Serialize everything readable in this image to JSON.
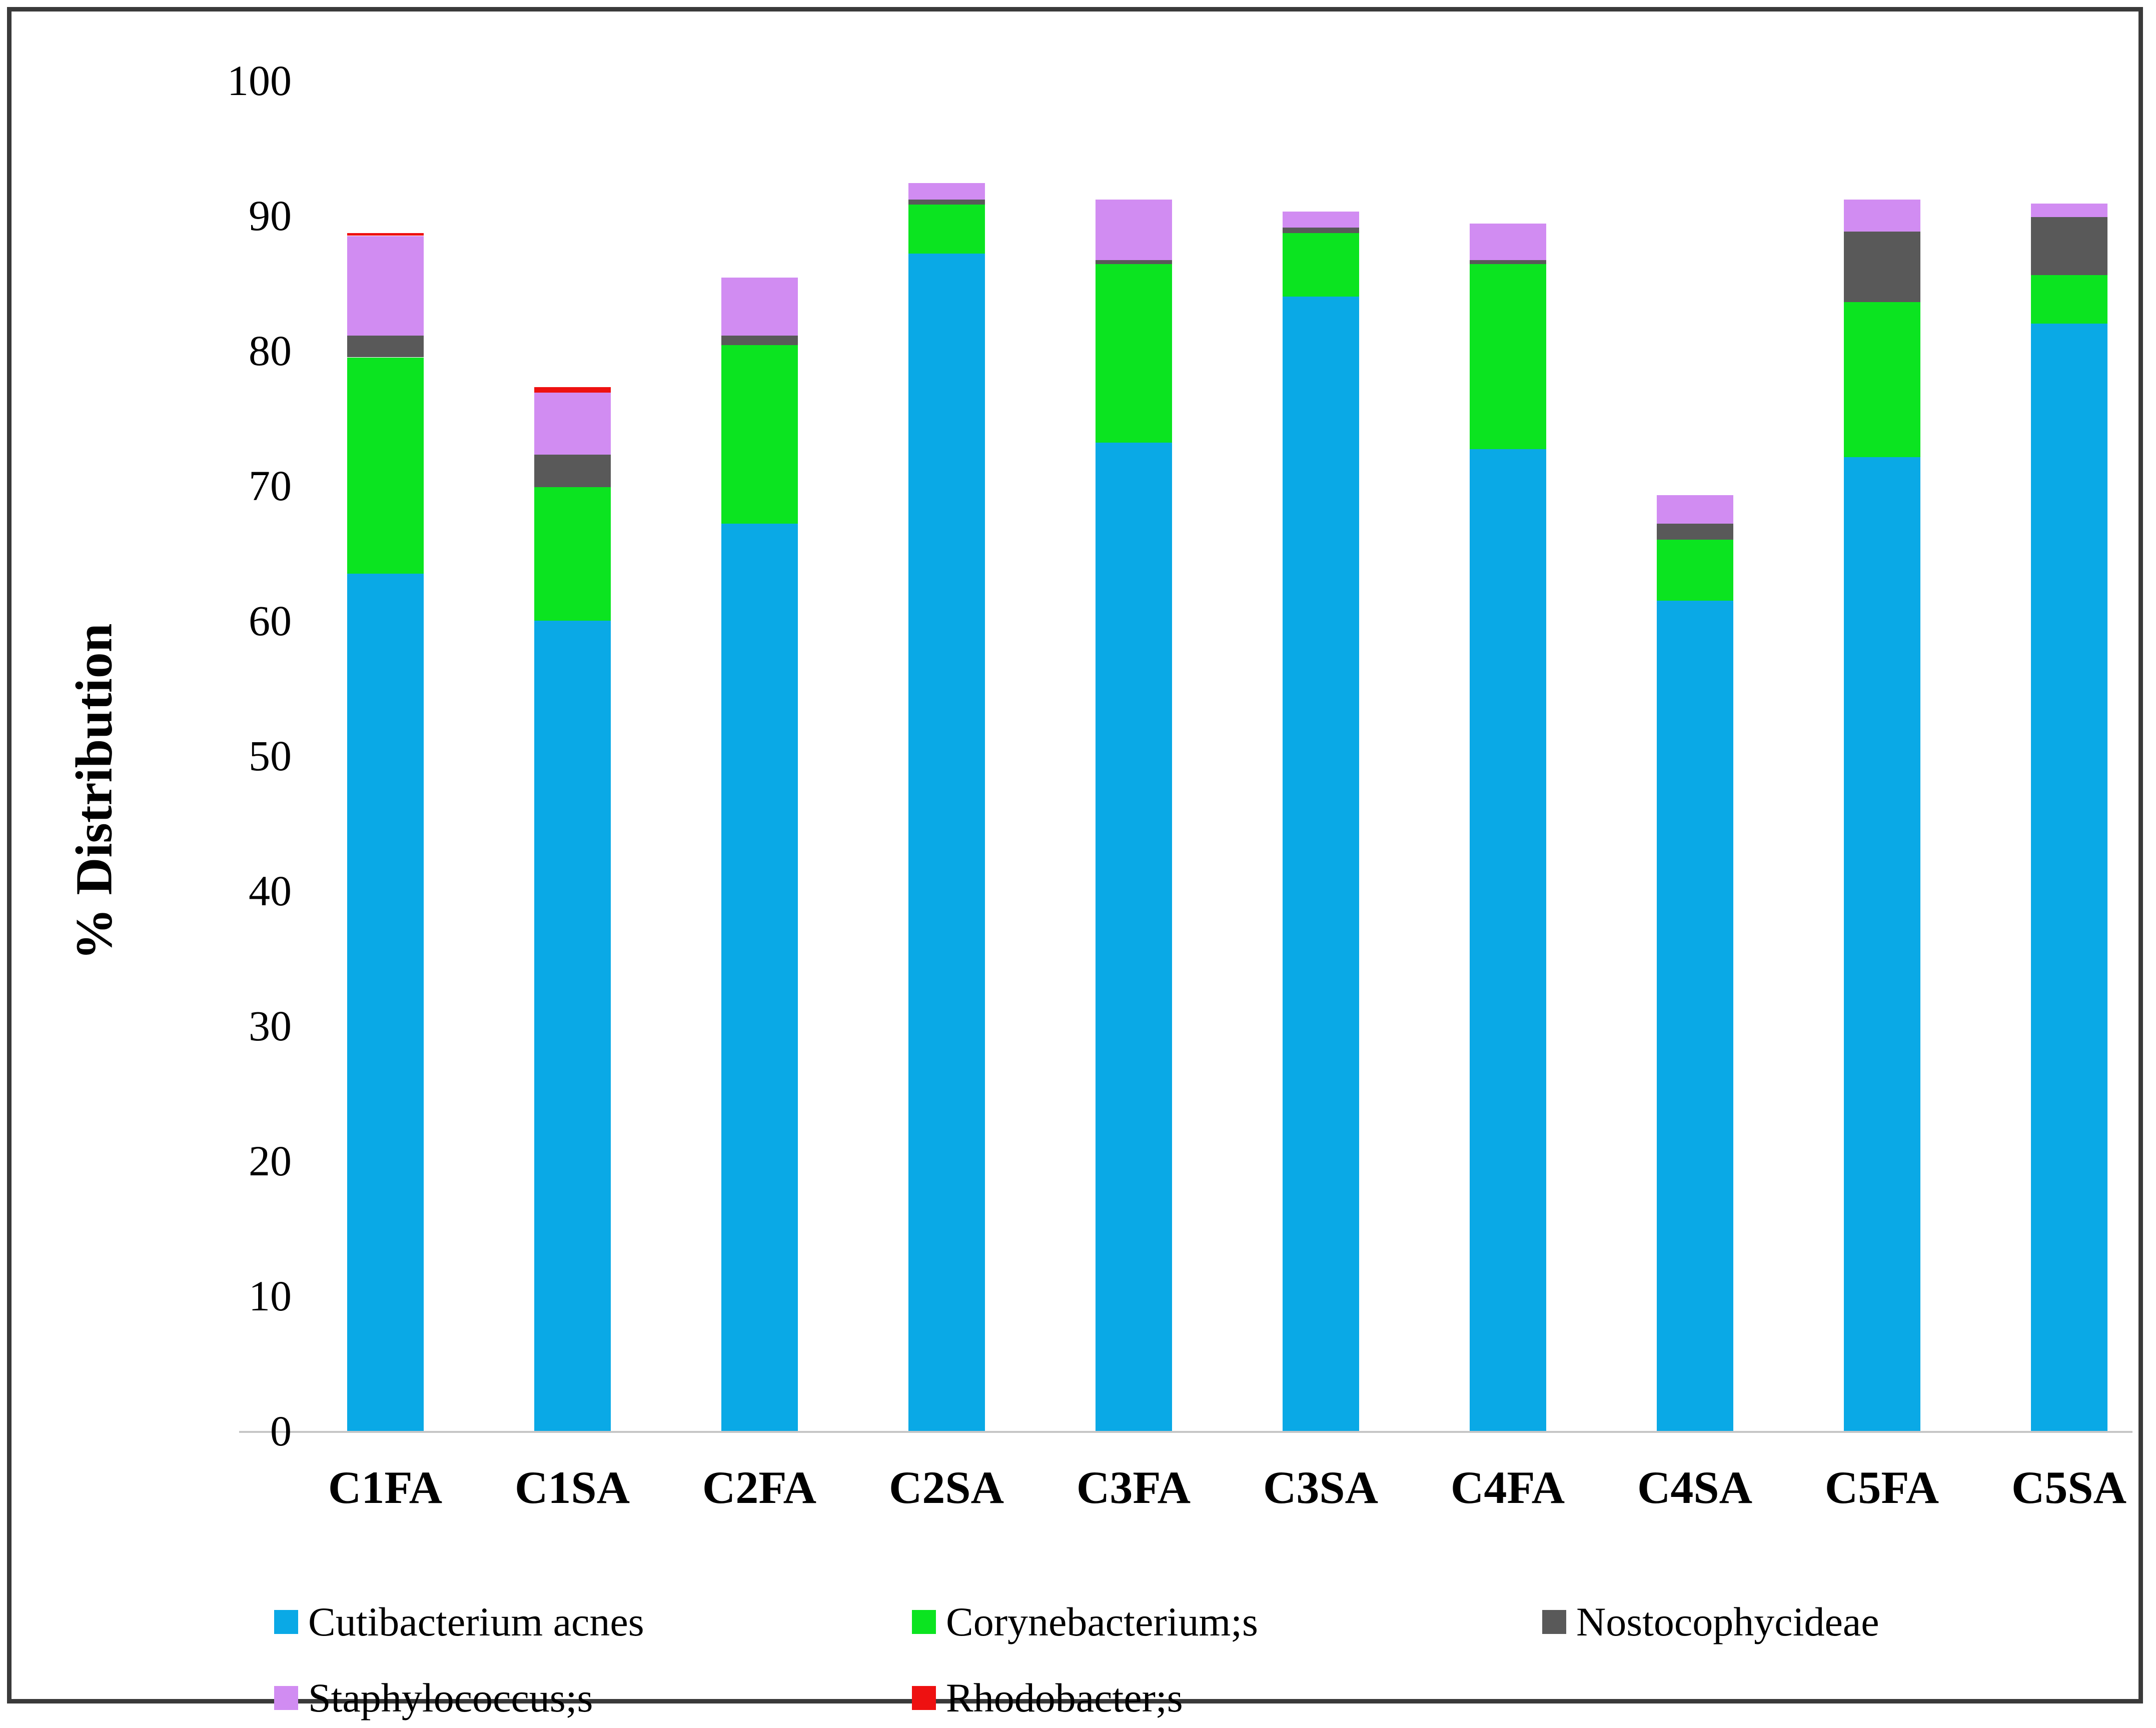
{
  "chart_data": {
    "type": "bar",
    "stacked": true,
    "title": "",
    "xlabel": "",
    "ylabel": "% Distribution",
    "ylim": [
      0,
      100
    ],
    "yticks": [
      0,
      10,
      20,
      30,
      40,
      50,
      60,
      70,
      80,
      90,
      100
    ],
    "grid": false,
    "legend_position": "bottom",
    "categories": [
      "C1FA",
      "C1SA",
      "C2FA",
      "C2SA",
      "C3FA",
      "C3SA",
      "C4FA",
      "C4SA",
      "C5FA",
      "C5SA"
    ],
    "series": [
      {
        "name": "Cutibacterium acnes",
        "color": "#0AA9E6",
        "values": [
          63.5,
          60.0,
          67.2,
          87.2,
          73.2,
          84.0,
          72.7,
          61.5,
          72.1,
          82.0
        ]
      },
      {
        "name": "Corynebacterium;s",
        "color": "#0BE420",
        "values": [
          16.0,
          9.9,
          13.2,
          3.6,
          13.2,
          4.7,
          13.7,
          4.5,
          11.5,
          3.6
        ]
      },
      {
        "name": "Nostocophycideae",
        "color": "#595959",
        "values": [
          1.6,
          2.4,
          0.7,
          0.4,
          0.3,
          0.4,
          0.3,
          1.2,
          5.2,
          4.3
        ]
      },
      {
        "name": "Staphylococcus;s",
        "color": "#D18CF2",
        "values": [
          7.4,
          4.6,
          4.3,
          1.2,
          4.5,
          1.2,
          2.7,
          2.1,
          2.4,
          1.0
        ]
      },
      {
        "name": "Rhodobacter;s",
        "color": "#EE1111",
        "values": [
          0.2,
          0.4,
          0,
          0,
          0,
          0,
          0,
          0,
          0,
          0
        ]
      }
    ],
    "totals": [
      88.7,
      77.3,
      85.4,
      92.4,
      91.2,
      90.3,
      89.4,
      69.3,
      91.2,
      90.9
    ]
  },
  "legend": {
    "rows": [
      [
        "Cutibacterium acnes",
        "Corynebacterium;s",
        "Nostocophycideae"
      ],
      [
        "Staphylococcus;s",
        "Rhodobacter;s"
      ]
    ]
  }
}
